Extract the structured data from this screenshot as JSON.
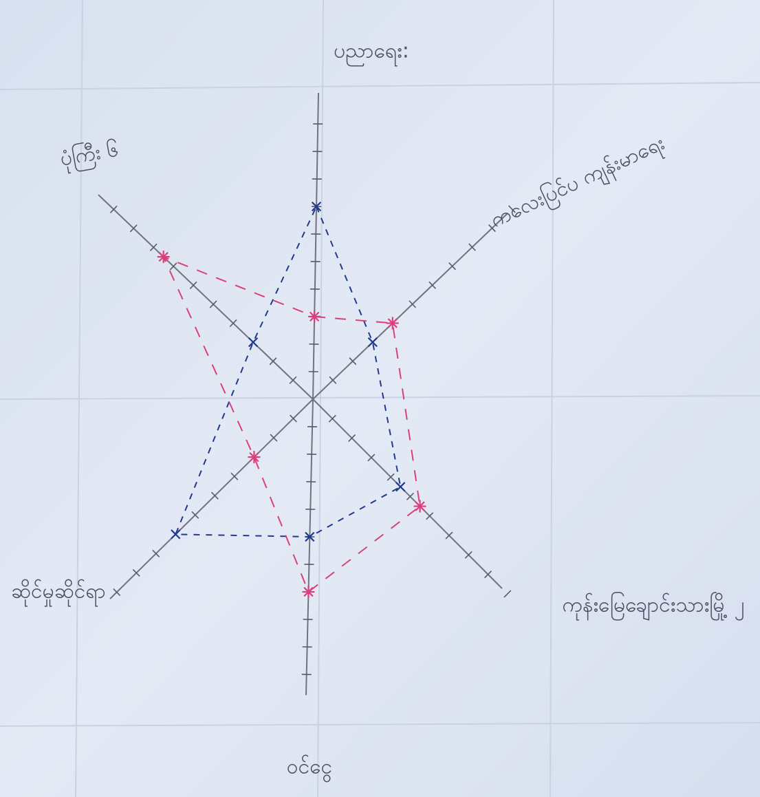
{
  "chart_data": {
    "type": "radar",
    "categories": [
      "ပညာရေး:",
      "ကလေးပြင်ပ ကျန်းမာရေး",
      "ကုန်းမြေချောင်းသားမြို့ ၂",
      "ဝင်ငွေ",
      "ဆိုင်မှုဆိုင်ရာ",
      "ပုံကြီး ၆"
    ],
    "series": [
      {
        "color": "#1f3a8a",
        "marker": "x",
        "values": [
          7,
          3,
          4.5,
          5,
          7,
          3
        ]
      },
      {
        "color": "#d9407a",
        "marker": "asterisk",
        "values": [
          3,
          4,
          5.5,
          7,
          3,
          7.5
        ]
      }
    ],
    "ylim": [
      0,
      11
    ],
    "yticks": [
      1,
      2,
      3,
      4,
      5,
      6,
      7,
      8,
      9,
      10
    ]
  }
}
